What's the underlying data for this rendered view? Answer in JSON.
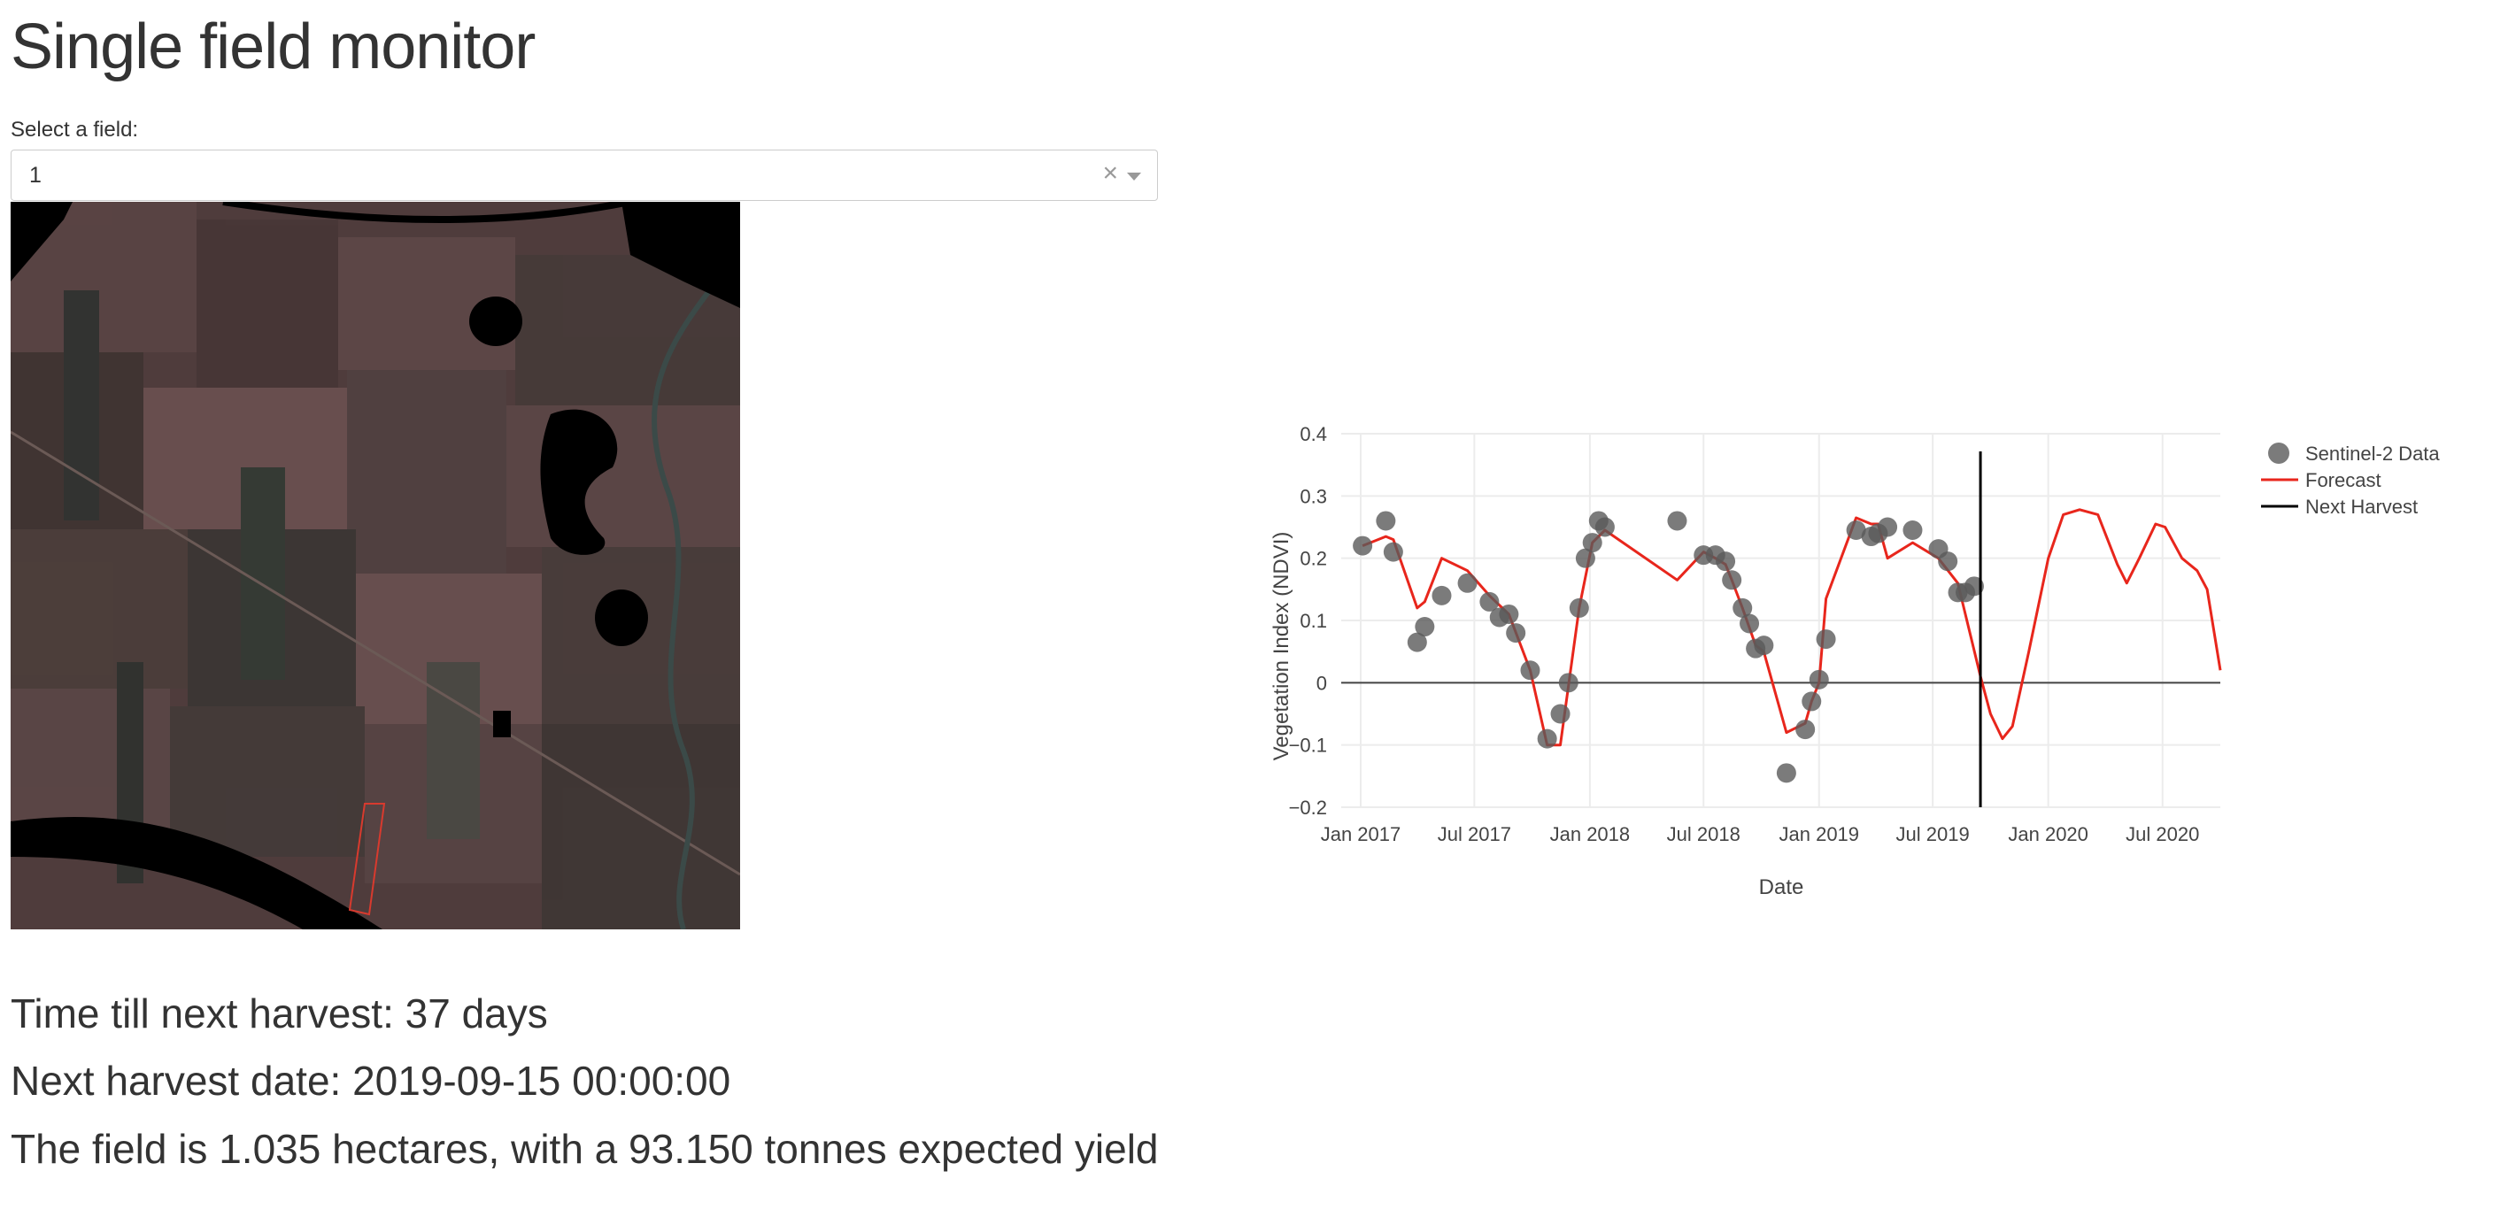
{
  "page": {
    "title": "Single field monitor",
    "select_label": "Select a field:",
    "select_value": "1",
    "clear_glyph": "×"
  },
  "info": {
    "line1": "Time till next harvest: 37 days",
    "line2": "Next harvest date: 2019-09-15 00:00:00",
    "line3": "The field is 1.035 hectares, with a 93.150 tonnes expected yield"
  },
  "colors": {
    "forecast": "#e8261c",
    "points": "#5a5a5a",
    "harvest": "#000000"
  },
  "chart_data": {
    "type": "scatter",
    "xlabel": "Date",
    "ylabel": "Vegetation Index (NDVI)",
    "ylim": [
      -0.2,
      0.4
    ],
    "xlim": [
      "2016-12-01",
      "2020-10-01"
    ],
    "y_ticks": [
      0.4,
      0.3,
      0.2,
      0.1,
      0,
      -0.1,
      -0.2
    ],
    "y_tick_labels": [
      "0.4",
      "0.3",
      "0.2",
      "0.1",
      "0",
      "−0.1",
      "−0.2"
    ],
    "x_ticks": [
      "2017-01-01",
      "2017-07-01",
      "2018-01-01",
      "2018-07-01",
      "2019-01-01",
      "2019-07-01",
      "2020-01-01",
      "2020-07-01"
    ],
    "x_tick_labels": [
      "Jan 2017",
      "Jul 2017",
      "Jan 2018",
      "Jul 2018",
      "Jan 2019",
      "Jul 2019",
      "Jan 2020",
      "Jul 2020"
    ],
    "legend_position": "top-right",
    "grid": true,
    "series": [
      {
        "name": "Sentinel-2 Data",
        "kind": "markers",
        "points": [
          [
            "2017-01-04",
            0.22
          ],
          [
            "2017-02-10",
            0.26
          ],
          [
            "2017-02-22",
            0.21
          ],
          [
            "2017-04-01",
            0.065
          ],
          [
            "2017-04-13",
            0.09
          ],
          [
            "2017-05-10",
            0.14
          ],
          [
            "2017-06-20",
            0.16
          ],
          [
            "2017-07-25",
            0.13
          ],
          [
            "2017-08-10",
            0.105
          ],
          [
            "2017-08-25",
            0.11
          ],
          [
            "2017-09-05",
            0.08
          ],
          [
            "2017-09-28",
            0.02
          ],
          [
            "2017-10-25",
            -0.09
          ],
          [
            "2017-11-15",
            -0.05
          ],
          [
            "2017-11-28",
            0.0
          ],
          [
            "2017-12-15",
            0.12
          ],
          [
            "2017-12-25",
            0.2
          ],
          [
            "2018-01-05",
            0.225
          ],
          [
            "2018-01-15",
            0.26
          ],
          [
            "2018-01-25",
            0.25
          ],
          [
            "2018-05-20",
            0.26
          ],
          [
            "2018-07-01",
            0.205
          ],
          [
            "2018-07-20",
            0.205
          ],
          [
            "2018-08-05",
            0.195
          ],
          [
            "2018-08-15",
            0.165
          ],
          [
            "2018-09-01",
            0.12
          ],
          [
            "2018-09-12",
            0.095
          ],
          [
            "2018-09-22",
            0.055
          ],
          [
            "2018-10-05",
            0.06
          ],
          [
            "2018-11-10",
            -0.145
          ],
          [
            "2018-12-10",
            -0.075
          ],
          [
            "2018-12-20",
            -0.03
          ],
          [
            "2019-01-01",
            0.005
          ],
          [
            "2019-01-12",
            0.07
          ],
          [
            "2019-03-01",
            0.245
          ],
          [
            "2019-03-25",
            0.235
          ],
          [
            "2019-04-05",
            0.24
          ],
          [
            "2019-04-20",
            0.25
          ],
          [
            "2019-05-30",
            0.245
          ],
          [
            "2019-07-10",
            0.215
          ],
          [
            "2019-07-25",
            0.195
          ],
          [
            "2019-08-10",
            0.145
          ],
          [
            "2019-08-22",
            0.145
          ],
          [
            "2019-09-05",
            0.155
          ]
        ]
      },
      {
        "name": "Forecast",
        "kind": "line",
        "points": [
          [
            "2017-01-04",
            0.22
          ],
          [
            "2017-02-10",
            0.235
          ],
          [
            "2017-02-22",
            0.23
          ],
          [
            "2017-04-01",
            0.12
          ],
          [
            "2017-04-13",
            0.13
          ],
          [
            "2017-05-10",
            0.2
          ],
          [
            "2017-06-20",
            0.18
          ],
          [
            "2017-07-25",
            0.14
          ],
          [
            "2017-08-25",
            0.11
          ],
          [
            "2017-09-28",
            0.02
          ],
          [
            "2017-10-25",
            -0.1
          ],
          [
            "2017-11-15",
            -0.1
          ],
          [
            "2017-12-15",
            0.12
          ],
          [
            "2018-01-05",
            0.225
          ],
          [
            "2018-01-25",
            0.245
          ],
          [
            "2018-05-20",
            0.165
          ],
          [
            "2018-07-01",
            0.21
          ],
          [
            "2018-07-20",
            0.2
          ],
          [
            "2018-08-05",
            0.19
          ],
          [
            "2018-08-15",
            0.165
          ],
          [
            "2018-09-01",
            0.12
          ],
          [
            "2018-09-22",
            0.06
          ],
          [
            "2018-10-05",
            0.05
          ],
          [
            "2018-11-10",
            -0.08
          ],
          [
            "2018-12-10",
            -0.065
          ],
          [
            "2018-12-20",
            -0.03
          ],
          [
            "2019-01-01",
            0.0
          ],
          [
            "2019-01-12",
            0.135
          ],
          [
            "2019-03-01",
            0.265
          ],
          [
            "2019-03-25",
            0.255
          ],
          [
            "2019-04-05",
            0.255
          ],
          [
            "2019-04-20",
            0.2
          ],
          [
            "2019-05-30",
            0.225
          ],
          [
            "2019-07-10",
            0.2
          ],
          [
            "2019-08-10",
            0.16
          ],
          [
            "2019-09-15",
            0.01
          ],
          [
            "2019-10-01",
            -0.05
          ],
          [
            "2019-10-20",
            -0.09
          ],
          [
            "2019-11-05",
            -0.07
          ],
          [
            "2019-12-01",
            0.05
          ],
          [
            "2020-01-01",
            0.2
          ],
          [
            "2020-01-25",
            0.27
          ],
          [
            "2020-02-20",
            0.278
          ],
          [
            "2020-03-20",
            0.27
          ],
          [
            "2020-04-20",
            0.19
          ],
          [
            "2020-05-05",
            0.16
          ],
          [
            "2020-05-25",
            0.2
          ],
          [
            "2020-06-20",
            0.255
          ],
          [
            "2020-07-05",
            0.25
          ],
          [
            "2020-08-01",
            0.2
          ],
          [
            "2020-08-25",
            0.18
          ],
          [
            "2020-09-10",
            0.15
          ],
          [
            "2020-10-01",
            0.02
          ]
        ]
      },
      {
        "name": "Next Harvest",
        "kind": "vline",
        "x": "2019-09-15",
        "y_range": [
          -0.2,
          0.4
        ]
      }
    ]
  }
}
